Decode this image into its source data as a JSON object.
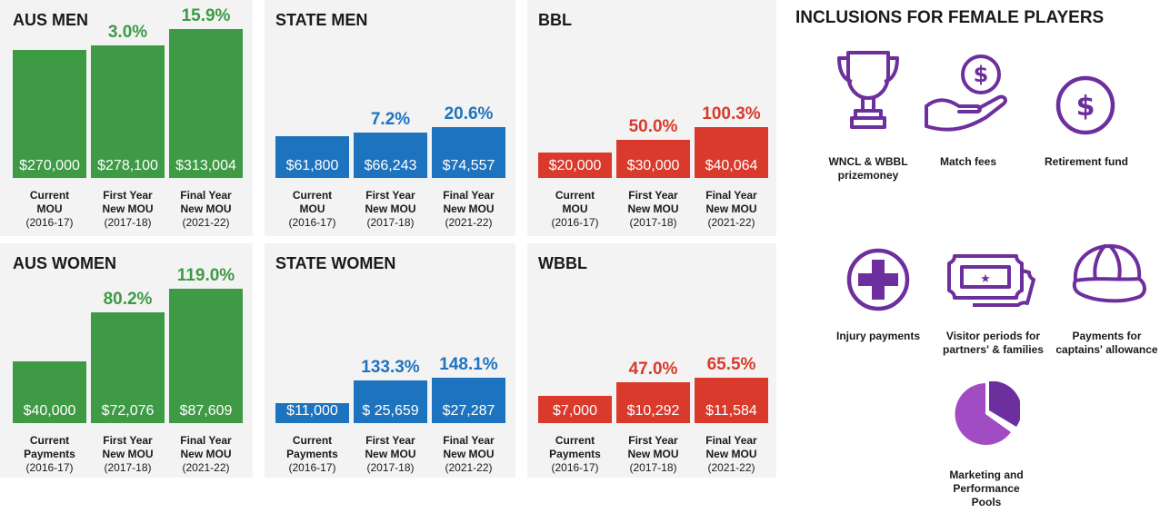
{
  "colors": {
    "green": "#3e9a45",
    "blue": "#1e73be",
    "red": "#d93a2b",
    "purple": "#6d2f9e",
    "green_text": "#3e9a45",
    "blue_text": "#1e73be",
    "red_text": "#d93a2b"
  },
  "chart_data": [
    {
      "type": "bar",
      "title": "AUS MEN",
      "color": "green",
      "categories": [
        "Current MOU (2016-17)",
        "First Year New MOU (2017-18)",
        "Final Year New MOU (2021-22)"
      ],
      "values": [
        270000,
        278100,
        313004
      ],
      "value_labels": [
        "$270,000",
        "$278,100",
        "$313,004"
      ],
      "pct_labels": [
        "",
        "3.0%",
        "15.9%"
      ],
      "cat_lines": [
        [
          "Current",
          "MOU",
          "(2016-17)"
        ],
        [
          "First Year",
          "New MOU",
          "(2017-18)"
        ],
        [
          "Final Year",
          "New MOU",
          "(2021-22)"
        ]
      ]
    },
    {
      "type": "bar",
      "title": "STATE MEN",
      "color": "blue",
      "categories": [
        "Current MOU (2016-17)",
        "First Year New MOU (2017-18)",
        "Final Year New MOU (2021-22)"
      ],
      "values": [
        61800,
        66243,
        74557
      ],
      "value_labels": [
        "$61,800",
        "$66,243",
        "$74,557"
      ],
      "pct_labels": [
        "",
        "7.2%",
        "20.6%"
      ],
      "cat_lines": [
        [
          "Current",
          "MOU",
          "(2016-17)"
        ],
        [
          "First Year",
          "New MOU",
          "(2017-18)"
        ],
        [
          "Final Year",
          "New MOU",
          "(2021-22)"
        ]
      ]
    },
    {
      "type": "bar",
      "title": "BBL",
      "color": "red",
      "categories": [
        "Current MOU (2016-17)",
        "First Year New MOU (2017-18)",
        "Final Year New MOU (2021-22)"
      ],
      "values": [
        20000,
        30000,
        40064
      ],
      "value_labels": [
        "$20,000",
        "$30,000",
        "$40,064"
      ],
      "pct_labels": [
        "",
        "50.0%",
        "100.3%"
      ],
      "cat_lines": [
        [
          "Current",
          "MOU",
          "(2016-17)"
        ],
        [
          "First Year",
          "New MOU",
          "(2017-18)"
        ],
        [
          "Final Year",
          "New MOU",
          "(2021-22)"
        ]
      ]
    },
    {
      "type": "bar",
      "title": "AUS WOMEN",
      "color": "green",
      "categories": [
        "Current Payments (2016-17)",
        "First Year New MOU (2017-18)",
        "Final Year New MOU (2021-22)"
      ],
      "values": [
        40000,
        72076,
        87609
      ],
      "value_labels": [
        "$40,000",
        "$72,076",
        "$87,609"
      ],
      "pct_labels": [
        "",
        "80.2%",
        "119.0%"
      ],
      "cat_lines": [
        [
          "Current",
          "Payments",
          "(2016-17)"
        ],
        [
          "First Year",
          "New MOU",
          "(2017-18)"
        ],
        [
          "Final Year",
          "New MOU",
          "(2021-22)"
        ]
      ]
    },
    {
      "type": "bar",
      "title": "STATE WOMEN",
      "color": "blue",
      "categories": [
        "Current Payments (2016-17)",
        "First Year New MOU (2017-18)",
        "Final Year New MOU (2021-22)"
      ],
      "values": [
        11000,
        25659,
        27287
      ],
      "value_labels": [
        "$11,000",
        "$ 25,659",
        "$27,287"
      ],
      "pct_labels": [
        "",
        "133.3%",
        "148.1%"
      ],
      "cat_lines": [
        [
          "Current",
          "Payments",
          "(2016-17)"
        ],
        [
          "First Year",
          "New MOU",
          "(2017-18)"
        ],
        [
          "Final Year",
          "New MOU",
          "(2021-22)"
        ]
      ]
    },
    {
      "type": "bar",
      "title": "WBBL",
      "color": "red",
      "categories": [
        "Current Payments (2016-17)",
        "First Year New MOU (2017-18)",
        "Final Year New MOU (2021-22)"
      ],
      "values": [
        7000,
        10292,
        11584
      ],
      "value_labels": [
        "$7,000",
        "$10,292",
        "$11,584"
      ],
      "pct_labels": [
        "",
        "47.0%",
        "65.5%"
      ],
      "cat_lines": [
        [
          "Current",
          "Payments",
          "(2016-17)"
        ],
        [
          "First Year",
          "New MOU",
          "(2017-18)"
        ],
        [
          "Final Year",
          "New MOU",
          "(2021-22)"
        ]
      ]
    }
  ],
  "inclusions": {
    "title": "INCLUSIONS FOR FEMALE PLAYERS",
    "items": [
      {
        "icon": "trophy-icon",
        "label": "WNCL & WBBL\nprizemoney"
      },
      {
        "icon": "hand-coin-icon",
        "label": "Match fees"
      },
      {
        "icon": "dollar-circle-icon",
        "label": "Retirement fund"
      },
      {
        "icon": "medical-cross-icon",
        "label": "Injury payments"
      },
      {
        "icon": "ticket-icon",
        "label": "Visitor periods for\npartners' & families"
      },
      {
        "icon": "cap-icon",
        "label": "Payments for\ncaptains' allowance"
      },
      {
        "icon": "pie-icon",
        "label": "Marketing and\nPerformance\nPools"
      }
    ]
  }
}
